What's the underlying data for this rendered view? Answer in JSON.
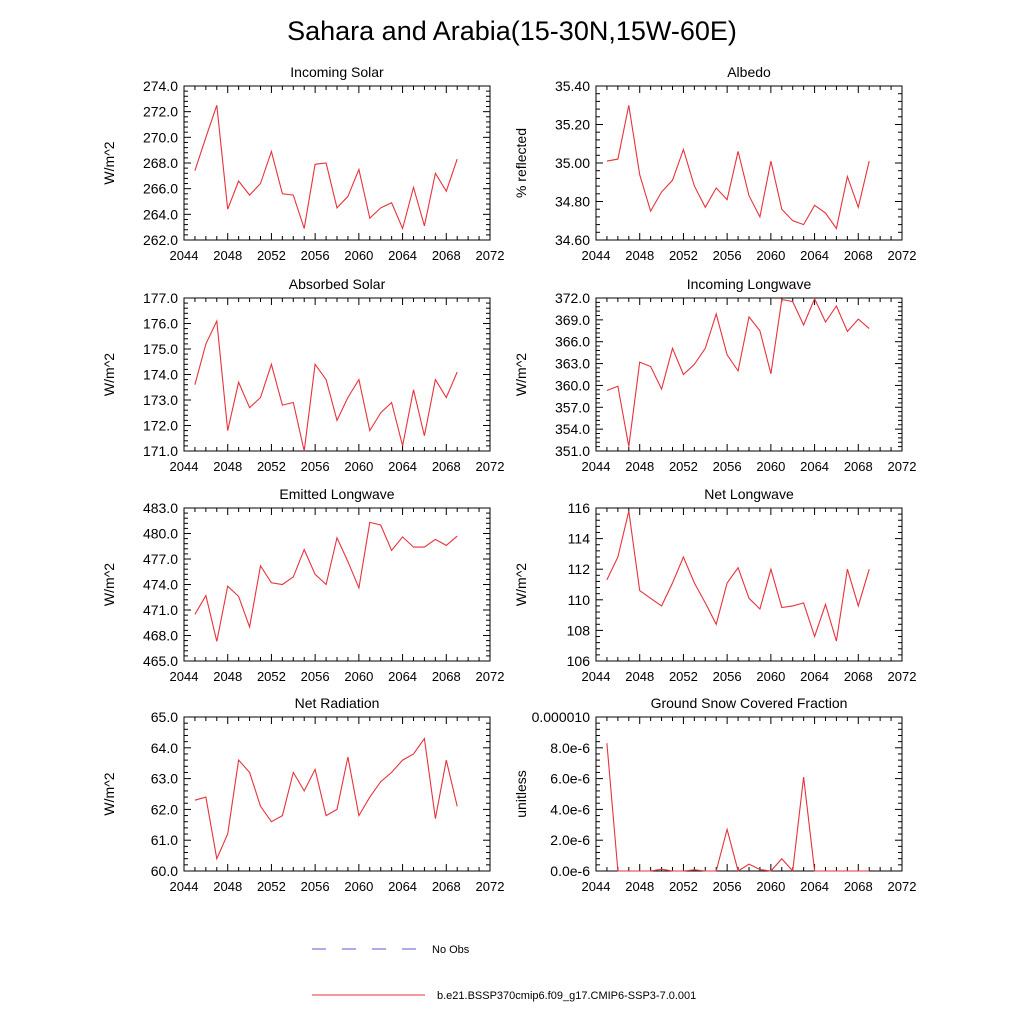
{
  "figure": {
    "title": "Sahara and Arabia(15-30N,15W-60E)",
    "legend": [
      {
        "label": "No Obs",
        "color": "#5a5ad6",
        "style": "dashed"
      },
      {
        "label": "b.e21.BSSP370cmip6.f09_g17.CMIP6-SSP3-7.0.001",
        "color": "#e8323c",
        "style": "solid"
      }
    ],
    "series_color": "#e8323c"
  },
  "chart_data": [
    {
      "type": "line",
      "title": "Incoming Solar",
      "ylabel": "W/m^2",
      "xlabel": "",
      "xlim": [
        2044,
        2072
      ],
      "ylim": [
        262,
        274
      ],
      "xticks": [
        "2044",
        "2048",
        "2052",
        "2056",
        "2060",
        "2064",
        "2068",
        "2072"
      ],
      "yticks": [
        "262.0",
        "264.0",
        "266.0",
        "268.0",
        "270.0",
        "272.0",
        "274.0"
      ],
      "x": [
        2045,
        2046,
        2047,
        2048,
        2049,
        2050,
        2051,
        2052,
        2053,
        2054,
        2055,
        2056,
        2057,
        2058,
        2059,
        2060,
        2061,
        2062,
        2063,
        2064,
        2065,
        2066,
        2067,
        2068,
        2069
      ],
      "values": [
        267.4,
        270.0,
        272.5,
        264.4,
        266.6,
        265.5,
        266.4,
        268.9,
        265.6,
        265.5,
        262.9,
        267.9,
        268.0,
        264.5,
        265.4,
        267.5,
        263.7,
        264.5,
        264.9,
        262.9,
        266.1,
        263.1,
        267.2,
        265.8,
        268.3
      ]
    },
    {
      "type": "line",
      "title": "Albedo",
      "ylabel": "% reflected",
      "xlabel": "",
      "xlim": [
        2044,
        2072
      ],
      "ylim": [
        34.6,
        35.4
      ],
      "xticks": [
        "2044",
        "2048",
        "2052",
        "2056",
        "2060",
        "2064",
        "2068",
        "2072"
      ],
      "yticks": [
        "34.60",
        "34.80",
        "35.00",
        "35.20",
        "35.40"
      ],
      "x": [
        2045,
        2046,
        2047,
        2048,
        2049,
        2050,
        2051,
        2052,
        2053,
        2054,
        2055,
        2056,
        2057,
        2058,
        2059,
        2060,
        2061,
        2062,
        2063,
        2064,
        2065,
        2066,
        2067,
        2068,
        2069
      ],
      "values": [
        35.01,
        35.02,
        35.3,
        34.94,
        34.75,
        34.85,
        34.91,
        35.07,
        34.88,
        34.77,
        34.87,
        34.81,
        35.06,
        34.83,
        34.72,
        35.01,
        34.76,
        34.7,
        34.68,
        34.78,
        34.74,
        34.66,
        34.93,
        34.77,
        35.01
      ]
    },
    {
      "type": "line",
      "title": "Absorbed Solar",
      "ylabel": "W/m^2",
      "xlabel": "",
      "xlim": [
        2044,
        2072
      ],
      "ylim": [
        171,
        177
      ],
      "xticks": [
        "2044",
        "2048",
        "2052",
        "2056",
        "2060",
        "2064",
        "2068",
        "2072"
      ],
      "yticks": [
        "171.0",
        "172.0",
        "173.0",
        "174.0",
        "175.0",
        "176.0",
        "177.0"
      ],
      "x": [
        2045,
        2046,
        2047,
        2048,
        2049,
        2050,
        2051,
        2052,
        2053,
        2054,
        2055,
        2056,
        2057,
        2058,
        2059,
        2060,
        2061,
        2062,
        2063,
        2064,
        2065,
        2066,
        2067,
        2068,
        2069
      ],
      "values": [
        173.6,
        175.2,
        176.1,
        171.8,
        173.7,
        172.7,
        173.1,
        174.4,
        172.8,
        172.9,
        171.0,
        174.4,
        173.8,
        172.2,
        173.1,
        173.8,
        171.8,
        172.5,
        172.9,
        171.2,
        173.4,
        171.6,
        173.8,
        173.1,
        174.1
      ]
    },
    {
      "type": "line",
      "title": "Incoming Longwave",
      "ylabel": "W/m^2",
      "xlabel": "",
      "xlim": [
        2044,
        2072
      ],
      "ylim": [
        351,
        372
      ],
      "xticks": [
        "2044",
        "2048",
        "2052",
        "2056",
        "2060",
        "2064",
        "2068",
        "2072"
      ],
      "yticks": [
        "351.0",
        "354.0",
        "357.0",
        "360.0",
        "363.0",
        "366.0",
        "369.0",
        "372.0"
      ],
      "x": [
        2045,
        2046,
        2047,
        2048,
        2049,
        2050,
        2051,
        2052,
        2053,
        2054,
        2055,
        2056,
        2057,
        2058,
        2059,
        2060,
        2061,
        2062,
        2063,
        2064,
        2065,
        2066,
        2067,
        2068,
        2069
      ],
      "values": [
        359.3,
        359.9,
        351.6,
        363.2,
        362.6,
        359.5,
        365.1,
        361.5,
        362.9,
        365.1,
        369.8,
        364.2,
        362.0,
        369.4,
        367.5,
        361.6,
        371.8,
        371.5,
        368.3,
        371.9,
        368.7,
        370.9,
        367.4,
        369.1,
        367.8
      ]
    },
    {
      "type": "line",
      "title": "Emitted Longwave",
      "ylabel": "W/m^2",
      "xlabel": "",
      "xlim": [
        2044,
        2072
      ],
      "ylim": [
        465,
        483
      ],
      "xticks": [
        "2044",
        "2048",
        "2052",
        "2056",
        "2060",
        "2064",
        "2068",
        "2072"
      ],
      "yticks": [
        "465.0",
        "468.0",
        "471.0",
        "474.0",
        "477.0",
        "480.0",
        "483.0"
      ],
      "x": [
        2045,
        2046,
        2047,
        2048,
        2049,
        2050,
        2051,
        2052,
        2053,
        2054,
        2055,
        2056,
        2057,
        2058,
        2059,
        2060,
        2061,
        2062,
        2063,
        2064,
        2065,
        2066,
        2067,
        2068,
        2069
      ],
      "values": [
        470.5,
        472.7,
        467.3,
        473.8,
        472.6,
        469.0,
        476.2,
        474.2,
        474.0,
        474.9,
        478.1,
        475.2,
        474.0,
        479.5,
        476.7,
        473.6,
        481.3,
        481.0,
        478.0,
        479.6,
        478.4,
        478.4,
        479.3,
        478.6,
        479.7
      ]
    },
    {
      "type": "line",
      "title": "Net Longwave",
      "ylabel": "W/m^2",
      "xlabel": "",
      "xlim": [
        2044,
        2072
      ],
      "ylim": [
        106,
        116
      ],
      "xticks": [
        "2044",
        "2048",
        "2052",
        "2056",
        "2060",
        "2064",
        "2068",
        "2072"
      ],
      "yticks": [
        "106",
        "108",
        "110",
        "112",
        "114",
        "116"
      ],
      "x": [
        2045,
        2046,
        2047,
        2048,
        2049,
        2050,
        2051,
        2052,
        2053,
        2054,
        2055,
        2056,
        2057,
        2058,
        2059,
        2060,
        2061,
        2062,
        2063,
        2064,
        2065,
        2066,
        2067,
        2068,
        2069
      ],
      "values": [
        111.3,
        112.8,
        115.8,
        110.6,
        110.1,
        109.6,
        111.1,
        112.8,
        111.1,
        109.8,
        108.4,
        111.1,
        112.1,
        110.1,
        109.4,
        112.0,
        109.5,
        109.6,
        109.8,
        107.6,
        109.7,
        107.3,
        112.0,
        109.6,
        112.0
      ]
    },
    {
      "type": "line",
      "title": "Net Radiation",
      "ylabel": "W/m^2",
      "xlabel": "",
      "xlim": [
        2044,
        2072
      ],
      "ylim": [
        60,
        65
      ],
      "xticks": [
        "2044",
        "2048",
        "2052",
        "2056",
        "2060",
        "2064",
        "2068",
        "2072"
      ],
      "yticks": [
        "60.0",
        "61.0",
        "62.0",
        "63.0",
        "64.0",
        "65.0"
      ],
      "x": [
        2045,
        2046,
        2047,
        2048,
        2049,
        2050,
        2051,
        2052,
        2053,
        2054,
        2055,
        2056,
        2057,
        2058,
        2059,
        2060,
        2061,
        2062,
        2063,
        2064,
        2065,
        2066,
        2067,
        2068,
        2069
      ],
      "values": [
        62.3,
        62.4,
        60.4,
        61.2,
        63.6,
        63.2,
        62.1,
        61.6,
        61.8,
        63.2,
        62.6,
        63.3,
        61.8,
        62.0,
        63.7,
        61.8,
        62.4,
        62.9,
        63.2,
        63.6,
        63.8,
        64.3,
        61.7,
        63.6,
        62.1
      ]
    },
    {
      "type": "line",
      "title": "Ground Snow Covered Fraction",
      "ylabel": "unitless",
      "xlabel": "",
      "xlim": [
        2044,
        2072
      ],
      "ylim": [
        0,
        1e-05
      ],
      "xticks": [
        "2044",
        "2048",
        "2052",
        "2056",
        "2060",
        "2064",
        "2068",
        "2072"
      ],
      "yticks": [
        "0.0e-6",
        "2.0e-6",
        "4.0e-6",
        "6.0e-6",
        "8.0e-6",
        "0.000010"
      ],
      "x": [
        2045,
        2046,
        2047,
        2048,
        2049,
        2050,
        2051,
        2052,
        2053,
        2054,
        2055,
        2056,
        2057,
        2058,
        2059,
        2060,
        2061,
        2062,
        2063,
        2064,
        2065,
        2066,
        2067,
        2068,
        2069
      ],
      "values": [
        8.3e-06,
        0,
        0,
        0,
        0,
        1.2e-07,
        0,
        0,
        8e-08,
        0,
        0,
        2.7e-06,
        0,
        4.5e-07,
        1e-07,
        0,
        8e-07,
        0,
        6.1e-06,
        0,
        0,
        0,
        0,
        0,
        0
      ]
    }
  ]
}
